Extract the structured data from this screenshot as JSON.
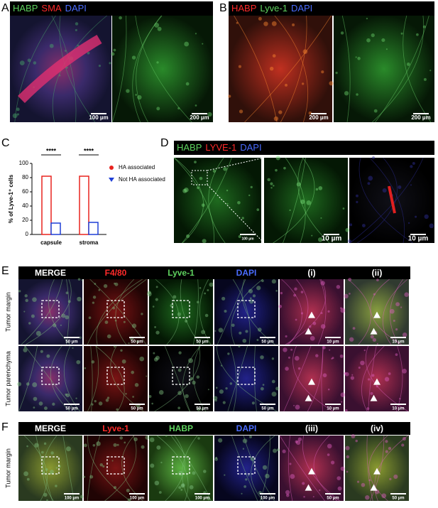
{
  "panels": {
    "A": {
      "label": "A",
      "header": [
        "HABP",
        "SMA",
        "DAPI"
      ],
      "scale_bars": [
        "100 µm",
        "200 µm"
      ]
    },
    "B": {
      "label": "B",
      "header": [
        "HABP",
        "Lyve-1",
        "DAPI"
      ],
      "scale_bars": [
        "200 µm",
        "200 µm"
      ]
    },
    "C": {
      "label": "C"
    },
    "D": {
      "label": "D",
      "header": [
        "HABP",
        "LYVE-1",
        "DAPI"
      ],
      "scale_bars": [
        "100 µm",
        "10 µm",
        "10 µm"
      ]
    },
    "E": {
      "label": "E",
      "columns": [
        "MERGE",
        "F4/80",
        "Lyve-1",
        "DAPI",
        "(i)",
        "(ii)"
      ],
      "rows": [
        "Tumor margin",
        "Tumor parenchyma"
      ],
      "scale_bars": [
        [
          "50 µm",
          "50 µm",
          "50 µm",
          "50 µm",
          "10 µm",
          "10 µm"
        ],
        [
          "50 µm",
          "50 µm",
          "50 µm",
          "50 µm",
          "10 µm",
          "10 µm"
        ]
      ]
    },
    "F": {
      "label": "F",
      "columns": [
        "MERGE",
        "Lyve-1",
        "HABP",
        "DAPI",
        "(iii)",
        "(iv)"
      ],
      "rows": [
        "Tumor margin"
      ],
      "scale_bars": [
        [
          "100 µm",
          "100 µm",
          "100 µm",
          "100 µm",
          "50 µm",
          "50 µm"
        ]
      ]
    }
  },
  "chart_data": {
    "type": "bar",
    "y_label": "% of Lyve-1⁺ cells",
    "categories": [
      "capsule",
      "stroma"
    ],
    "series": [
      {
        "name": "HA associated",
        "color": "#e8231f",
        "values": [
          82,
          82
        ]
      },
      {
        "name": "Not HA associated",
        "color": "#1f3fd6",
        "values": [
          16,
          17
        ]
      }
    ],
    "annotations": [
      "****",
      "****"
    ],
    "ylim": [
      0,
      100
    ],
    "yticks": [
      0,
      20,
      40,
      60,
      80,
      100
    ]
  }
}
